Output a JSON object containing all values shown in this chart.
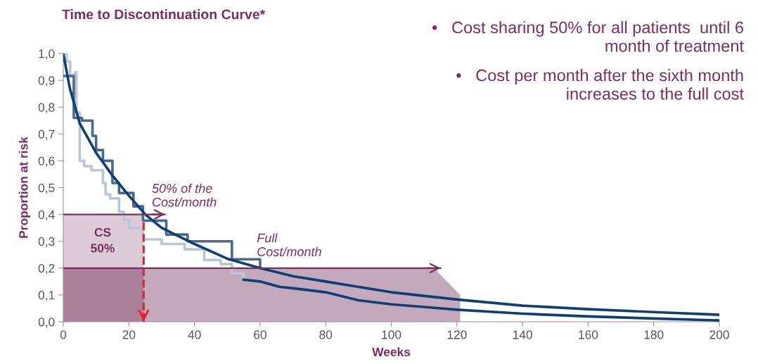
{
  "chart_data": {
    "type": "line",
    "title": "Time to Discontinuation Curve*",
    "xlabel": "Weeks",
    "ylabel": "Proportion at risk",
    "xlim": [
      0,
      200
    ],
    "ylim": [
      0,
      1.0
    ],
    "xticks": [
      0,
      20,
      40,
      60,
      80,
      100,
      120,
      140,
      160,
      180,
      200
    ],
    "yticks": [
      {
        "value": 0,
        "label": "0,0"
      },
      {
        "value": 0.1,
        "label": "0,1"
      },
      {
        "value": 0.2,
        "label": "0,2"
      },
      {
        "value": 0.3,
        "label": "0,3"
      },
      {
        "value": 0.4,
        "label": "0,4"
      },
      {
        "value": 0.5,
        "label": "0,5"
      },
      {
        "value": 0.6,
        "label": "0,6"
      },
      {
        "value": 0.7,
        "label": "0,7"
      },
      {
        "value": 0.8,
        "label": "0,8"
      },
      {
        "value": 0.9,
        "label": "0,9"
      },
      {
        "value": 1.0,
        "label": "1,0"
      }
    ],
    "grid": false,
    "legend": false,
    "marker": "none",
    "line_style": "solid",
    "series": [
      {
        "type": "area",
        "color": "#dccbd6",
        "x": [
          0,
          24.5
        ],
        "values": [
          0.4,
          0.4
        ]
      },
      {
        "type": "area",
        "color": "#c4a8bc",
        "x": [
          0,
          113,
          121
        ],
        "values": [
          0.2,
          0.2,
          0.1
        ]
      },
      {
        "type": "area",
        "color": "#aa8099",
        "x": [
          0,
          24.5
        ],
        "values": [
          0.2,
          0.2
        ]
      },
      {
        "type": "step",
        "color": "#b9c6d6",
        "x": [
          0,
          1,
          2.1,
          3.6,
          4.0,
          5.0,
          6.4,
          8.6,
          12.1,
          12.9,
          14.3,
          17,
          18.4,
          20,
          24.3,
          30,
          37,
          43,
          48,
          51.4,
          55
        ],
        "values": [
          1.0,
          0.97,
          0.92,
          0.93,
          0.78,
          0.6,
          0.58,
          0.565,
          0.517,
          0.475,
          0.46,
          0.41,
          0.38,
          0.35,
          0.307,
          0.29,
          0.27,
          0.23,
          0.215,
          0.18,
          0.16
        ]
      },
      {
        "type": "step",
        "color": "#4a6890",
        "x": [
          0,
          2.5,
          3.2,
          5.7,
          8.9,
          10,
          12.1,
          15,
          17,
          21.4,
          24.3,
          31.4,
          37.9,
          51.4,
          60
        ],
        "values": [
          0.916,
          0.916,
          0.76,
          0.75,
          0.693,
          0.64,
          0.6,
          0.517,
          0.48,
          0.43,
          0.377,
          0.325,
          0.3,
          0.233,
          0.2
        ]
      },
      {
        "color": "#0e3f73",
        "x": [
          0,
          2,
          5,
          10,
          15,
          20,
          25,
          30,
          40,
          50,
          60,
          70,
          80,
          100,
          120,
          140,
          160,
          180,
          200
        ],
        "values": [
          1.0,
          0.87,
          0.74,
          0.63,
          0.545,
          0.47,
          0.4,
          0.35,
          0.29,
          0.235,
          0.2,
          0.17,
          0.15,
          0.11,
          0.083,
          0.06,
          0.047,
          0.036,
          0.026
        ]
      },
      {
        "color": "#0e3f73",
        "x": [
          55,
          60,
          66,
          70,
          80,
          90,
          100,
          110,
          120,
          140,
          160,
          180,
          200
        ],
        "values": [
          0.157,
          0.15,
          0.13,
          0.125,
          0.11,
          0.08,
          0.065,
          0.055,
          0.045,
          0.03,
          0.02,
          0.012,
          0.005
        ]
      },
      {
        "color": "#e8202a",
        "line_style": "dashed",
        "x": [
          24.5,
          24.5
        ],
        "values": [
          0.37,
          0
        ]
      },
      {
        "color": "#7a2d5f",
        "x": [
          0,
          31
        ],
        "values": [
          0.4,
          0.4
        ]
      },
      {
        "color": "#7a2d5f",
        "x": [
          0,
          115
        ],
        "values": [
          0.2,
          0.2
        ]
      }
    ],
    "annotations": [
      "50% of the\nCost/month",
      "Full\nCost/month",
      "CS\n50%",
      "•   Cost sharing 50% for all patients  until 6\nmonth of treatment",
      "•   Cost per month after the sixth month\nincreases to the full cost"
    ]
  }
}
